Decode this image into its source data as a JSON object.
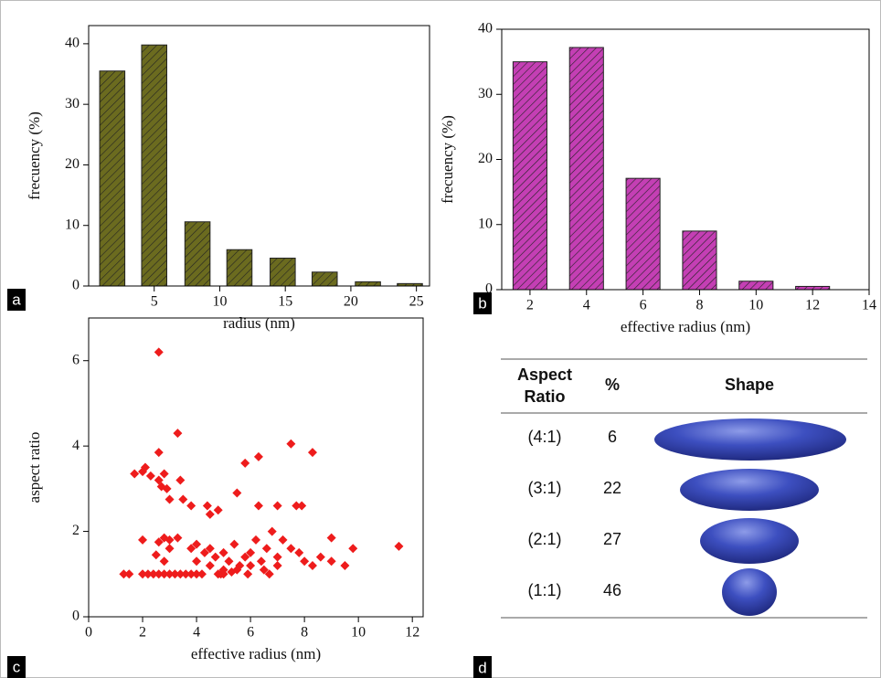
{
  "chart_data": [
    {
      "type": "bar",
      "panel_label": "a",
      "y_label": "frecuency (%)",
      "x_label": "radius (nm)",
      "color": "#6b6b1f",
      "x": [
        1.8,
        5.0,
        8.3,
        11.5,
        14.8,
        18.0,
        21.3,
        24.5
      ],
      "values": [
        35.5,
        39.8,
        10.6,
        6,
        4.6,
        2.3,
        0.7,
        0.4
      ],
      "xlim": [
        0,
        26
      ],
      "ylim": [
        0,
        43
      ],
      "xticks": [
        5,
        10,
        15,
        20,
        25
      ],
      "yticks": [
        0,
        10,
        20,
        30,
        40
      ]
    },
    {
      "type": "bar",
      "panel_label": "b",
      "y_label": "frecuency (%)",
      "x_label": "effective radius (nm)",
      "color": "#c43fb4",
      "x": [
        2,
        4,
        6,
        8,
        10,
        12
      ],
      "values": [
        35,
        37.2,
        17.1,
        9,
        1.3,
        0.5
      ],
      "xlim": [
        1,
        14
      ],
      "ylim": [
        0,
        40
      ],
      "xticks": [
        2,
        4,
        6,
        8,
        10,
        12,
        14
      ],
      "yticks": [
        0,
        10,
        20,
        30,
        40
      ]
    },
    {
      "type": "scatter",
      "panel_label": "c",
      "y_label": "aspect ratio",
      "x_label": "effective radius (nm)",
      "color": "#ee1c1c",
      "x": [
        1.3,
        1.5,
        2.0,
        2.2,
        2.4,
        2.6,
        2.8,
        3.0,
        3.2,
        3.4,
        3.6,
        3.8,
        4.0,
        4.2,
        4.9,
        5.0,
        2.6,
        3.3,
        7.5,
        8.3,
        2.6,
        5.8,
        6.3,
        1.7,
        2.0,
        2.1,
        2.3,
        2.6,
        2.8,
        2.7,
        2.9,
        3.0,
        3.4,
        3.5,
        3.8,
        4.4,
        4.5,
        4.8,
        5.5,
        6.3,
        7.0,
        7.7,
        7.9,
        2.0,
        2.6,
        2.8,
        3.0,
        3.3,
        3.0,
        2.5,
        2.8,
        3.8,
        4.0,
        4.3,
        4.5,
        4.7,
        5.0,
        5.2,
        5.4,
        5.6,
        5.8,
        6.0,
        6.2,
        6.4,
        6.6,
        6.8,
        7.0,
        7.2,
        7.5,
        7.8,
        8.0,
        8.3,
        8.6,
        9.0,
        9.0,
        9.5,
        9.8,
        11.5,
        4.0,
        4.5,
        5.0,
        5.5,
        6.0,
        6.5,
        7.0,
        4.8,
        5.3,
        5.9,
        6.7
      ],
      "values": [
        1,
        1,
        1,
        1,
        1,
        1,
        1,
        1,
        1,
        1,
        1,
        1,
        1,
        1,
        1,
        1,
        6.2,
        4.3,
        4.05,
        3.85,
        3.85,
        3.6,
        3.75,
        3.35,
        3.4,
        3.5,
        3.3,
        3.2,
        3.35,
        3.05,
        3.0,
        2.75,
        3.2,
        2.75,
        2.6,
        2.6,
        2.4,
        2.5,
        2.9,
        2.6,
        2.6,
        2.6,
        2.6,
        1.8,
        1.75,
        1.85,
        1.8,
        1.85,
        1.6,
        1.45,
        1.3,
        1.6,
        1.7,
        1.5,
        1.6,
        1.4,
        1.5,
        1.3,
        1.7,
        1.2,
        1.4,
        1.5,
        1.8,
        1.3,
        1.6,
        2.0,
        1.4,
        1.8,
        1.6,
        1.5,
        1.3,
        1.2,
        1.4,
        1.85,
        1.3,
        1.2,
        1.6,
        1.65,
        1.3,
        1.2,
        1.1,
        1.1,
        1.2,
        1.1,
        1.2,
        1.0,
        1.05,
        1.0,
        1.0
      ],
      "xlim": [
        0,
        12.4
      ],
      "ylim": [
        0,
        7
      ],
      "xticks": [
        0,
        2,
        4,
        6,
        8,
        10,
        12
      ],
      "yticks": [
        0,
        2,
        4,
        6
      ]
    }
  ],
  "table": {
    "panel_label": "d",
    "header": [
      "Aspect Ratio",
      "%",
      "Shape"
    ],
    "rows": [
      [
        "(4:1)",
        "6"
      ],
      [
        "(3:1)",
        "22"
      ],
      [
        "(2:1)",
        "27"
      ],
      [
        "(1:1)",
        "46"
      ]
    ]
  }
}
